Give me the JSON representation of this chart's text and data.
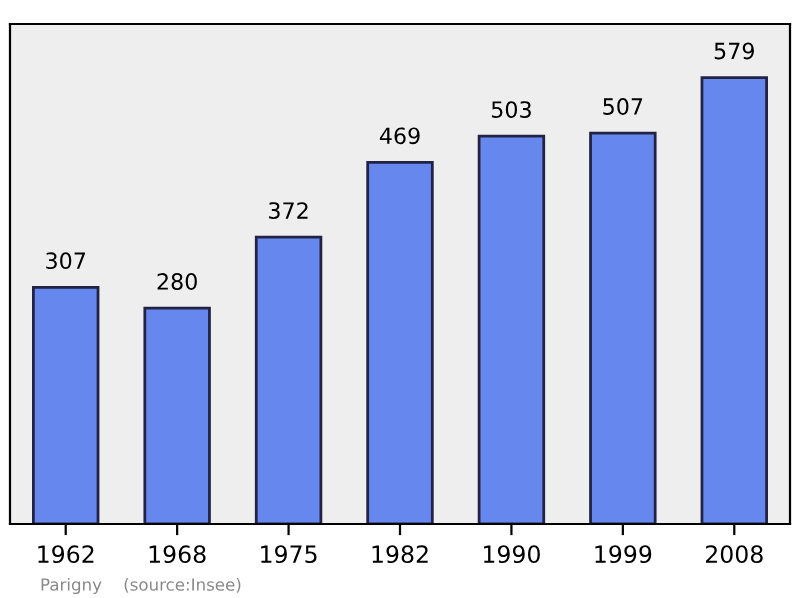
{
  "chart_data": {
    "type": "bar",
    "categories": [
      "1962",
      "1968",
      "1975",
      "1982",
      "1990",
      "1999",
      "2008"
    ],
    "values": [
      307,
      280,
      372,
      469,
      503,
      507,
      579
    ],
    "color": "#6688ee",
    "data_labels": true,
    "grid": false,
    "tick_labels": "x",
    "annotations": [
      "Parigny    (source:Insee)"
    ]
  }
}
